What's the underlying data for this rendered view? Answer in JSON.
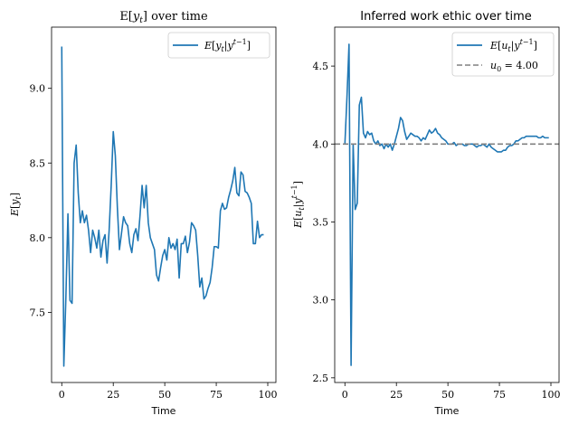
{
  "chart_data": [
    {
      "type": "line",
      "title": "E[y_t] over time",
      "xlabel": "Time",
      "ylabel": "E[y_t]",
      "xlim": [
        -4.95,
        103.95
      ],
      "ylim": [
        7.03,
        9.41
      ],
      "xticks": [
        0,
        25,
        50,
        75,
        100
      ],
      "yticks": [
        7.5,
        8.0,
        8.5,
        9.0
      ],
      "ytick_labels": [
        "7.5",
        "8.0",
        "8.5",
        "9.0"
      ],
      "grid": false,
      "legend_position": "top-right",
      "series": [
        {
          "name": "E[y_t|y^{t-1}]",
          "color": "#1f77b4",
          "style": "solid",
          "x": [
            0,
            1,
            2,
            3,
            4,
            5,
            6,
            7,
            8,
            9,
            10,
            11,
            12,
            13,
            14,
            15,
            16,
            17,
            18,
            19,
            20,
            21,
            22,
            23,
            24,
            25,
            26,
            27,
            28,
            29,
            30,
            31,
            32,
            33,
            34,
            35,
            36,
            37,
            38,
            39,
            40,
            41,
            42,
            43,
            44,
            45,
            46,
            47,
            48,
            49,
            50,
            51,
            52,
            53,
            54,
            55,
            56,
            57,
            58,
            59,
            60,
            61,
            62,
            63,
            64,
            65,
            66,
            67,
            68,
            69,
            70,
            71,
            72,
            73,
            74,
            75,
            76,
            77,
            78,
            79,
            80,
            81,
            82,
            83,
            84,
            85,
            86,
            87,
            88,
            89,
            90,
            91,
            92,
            93,
            94,
            95,
            96,
            97,
            98
          ],
          "y": [
            9.28,
            7.14,
            7.6,
            8.16,
            7.58,
            7.56,
            8.5,
            8.62,
            8.3,
            8.1,
            8.18,
            8.1,
            8.15,
            8.05,
            7.9,
            8.05,
            8.0,
            7.93,
            8.05,
            7.87,
            7.98,
            8.02,
            7.83,
            8.05,
            8.35,
            8.71,
            8.55,
            8.2,
            7.92,
            8.03,
            8.14,
            8.1,
            8.08,
            7.96,
            7.9,
            8.02,
            8.06,
            7.98,
            8.15,
            8.35,
            8.2,
            8.35,
            8.1,
            8.0,
            7.96,
            7.92,
            7.75,
            7.71,
            7.8,
            7.88,
            7.92,
            7.85,
            8.0,
            7.93,
            7.96,
            7.92,
            7.99,
            7.73,
            7.96,
            7.96,
            8.01,
            7.9,
            7.97,
            8.1,
            8.08,
            8.05,
            7.88,
            7.67,
            7.73,
            7.59,
            7.61,
            7.66,
            7.7,
            7.8,
            7.94,
            7.94,
            7.93,
            8.18,
            8.23,
            8.19,
            8.2,
            8.27,
            8.32,
            8.38,
            8.47,
            8.3,
            8.28,
            8.44,
            8.42,
            8.31,
            8.3,
            8.27,
            8.23,
            7.96,
            7.96,
            8.11,
            8.0,
            8.02,
            8.02
          ]
        }
      ]
    },
    {
      "type": "line",
      "title": "Inferred work ethic over time",
      "xlabel": "Time",
      "ylabel": "E[u_t|y^{t-1}]",
      "xlim": [
        -4.95,
        103.95
      ],
      "ylim": [
        2.47,
        4.75
      ],
      "xticks": [
        0,
        25,
        50,
        75,
        100
      ],
      "yticks": [
        2.5,
        3.0,
        3.5,
        4.0,
        4.5
      ],
      "ytick_labels": [
        "2.5",
        "3.0",
        "3.5",
        "4.0",
        "4.5"
      ],
      "grid": false,
      "legend_position": "top-right",
      "series": [
        {
          "name": "E[u_t|y^{t-1}]",
          "color": "#1f77b4",
          "style": "solid",
          "x": [
            0,
            1,
            2,
            3,
            4,
            5,
            6,
            7,
            8,
            9,
            10,
            11,
            12,
            13,
            14,
            15,
            16,
            17,
            18,
            19,
            20,
            21,
            22,
            23,
            24,
            25,
            26,
            27,
            28,
            29,
            30,
            31,
            32,
            33,
            34,
            35,
            36,
            37,
            38,
            39,
            40,
            41,
            42,
            43,
            44,
            45,
            46,
            47,
            48,
            49,
            50,
            51,
            52,
            53,
            54,
            55,
            56,
            57,
            58,
            59,
            60,
            61,
            62,
            63,
            64,
            65,
            66,
            67,
            68,
            69,
            70,
            71,
            72,
            73,
            74,
            75,
            76,
            77,
            78,
            79,
            80,
            81,
            82,
            83,
            84,
            85,
            86,
            87,
            88,
            89,
            90,
            91,
            92,
            93,
            94,
            95,
            96,
            97,
            98,
            99
          ],
          "y": [
            4.0,
            4.3,
            4.64,
            2.58,
            4.0,
            3.58,
            3.62,
            4.25,
            4.3,
            4.07,
            4.04,
            4.08,
            4.06,
            4.07,
            4.02,
            4.0,
            4.02,
            3.99,
            4.0,
            3.97,
            4.0,
            3.98,
            4.0,
            3.96,
            4.0,
            4.05,
            4.1,
            4.17,
            4.15,
            4.08,
            4.03,
            4.05,
            4.07,
            4.06,
            4.05,
            4.05,
            4.04,
            4.02,
            4.04,
            4.03,
            4.06,
            4.09,
            4.07,
            4.08,
            4.1,
            4.07,
            4.06,
            4.04,
            4.03,
            4.02,
            4.0,
            4.0,
            4.0,
            4.01,
            3.99,
            4.0,
            4.0,
            4.0,
            3.99,
            3.99,
            4.0,
            4.0,
            4.0,
            3.99,
            3.98,
            3.99,
            3.99,
            4.0,
            3.99,
            3.98,
            4.0,
            3.98,
            3.97,
            3.96,
            3.95,
            3.95,
            3.95,
            3.96,
            3.96,
            3.98,
            3.99,
            3.99,
            4.0,
            4.02,
            4.02,
            4.03,
            4.04,
            4.04,
            4.05,
            4.05,
            4.05,
            4.05,
            4.05,
            4.05,
            4.04,
            4.04,
            4.05,
            4.04,
            4.04,
            4.04
          ]
        },
        {
          "name": "u_0 = 4.00",
          "color": "#808080",
          "style": "dashed",
          "x": [
            -4.95,
            103.95
          ],
          "y": [
            4.0,
            4.0
          ]
        }
      ]
    }
  ]
}
